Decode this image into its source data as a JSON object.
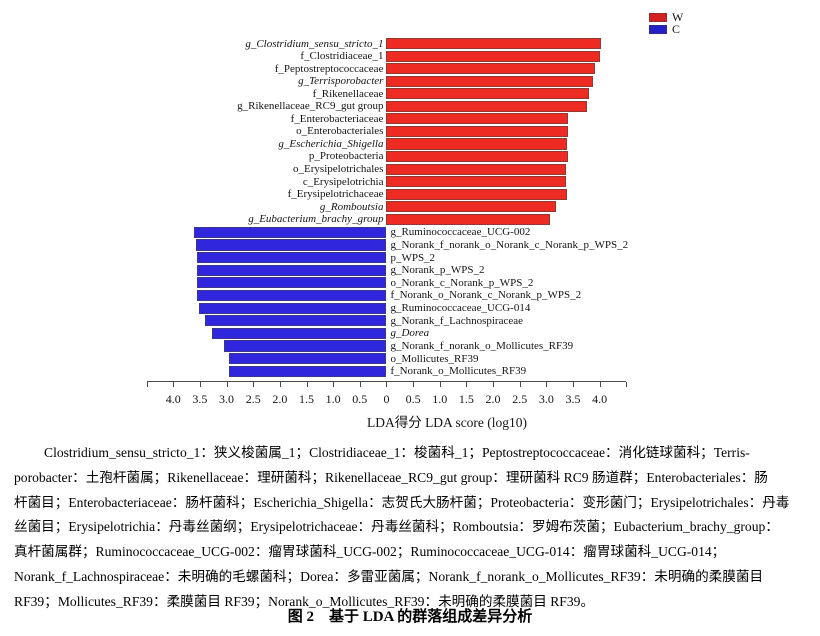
{
  "legend": {
    "items": [
      {
        "label": "W",
        "color": "#d32220"
      },
      {
        "label": "C",
        "color": "#2420c8"
      }
    ]
  },
  "chart_data": {
    "type": "bar",
    "orientation": "horizontal-diverging",
    "xlabel": "LDA得分  LDA score (log10)",
    "xlim": [
      -4.5,
      4.5
    ],
    "tick_step": 0.5,
    "ticks": [
      "4.0",
      "3.5",
      "3.0",
      "2.5",
      "2.0",
      "1.5",
      "1.0",
      "0.5",
      "0",
      "0.5",
      "1.0",
      "1.5",
      "2.0",
      "2.5",
      "3.0",
      "3.5",
      "4.0"
    ],
    "legend_position": "top-right",
    "grid": false,
    "series": [
      {
        "name": "W",
        "color": "#ee2b22",
        "side": "right",
        "items": [
          {
            "label": "g_Clostridium_sensu_stricto_1",
            "value": 4.02,
            "italic": true
          },
          {
            "label": "f_Clostridiaceae_1",
            "value": 4.0,
            "italic": false
          },
          {
            "label": "f_Peptostreptococcaceae",
            "value": 3.92,
            "italic": false
          },
          {
            "label": "g_Terrisporobacter",
            "value": 3.88,
            "italic": true
          },
          {
            "label": "f_Rikenellaceae",
            "value": 3.8,
            "italic": false
          },
          {
            "label": "g_Rikenellaceae_RC9_gut group",
            "value": 3.76,
            "italic": false
          },
          {
            "label": "f_Enterobacteriaceae",
            "value": 3.4,
            "italic": false
          },
          {
            "label": "o_Enterobacteriales",
            "value": 3.4,
            "italic": false
          },
          {
            "label": "g_Escherichia_Shigella",
            "value": 3.39,
            "italic": true
          },
          {
            "label": "p_Proteobacteria",
            "value": 3.4,
            "italic": false
          },
          {
            "label": "o_Erysipelotrichales",
            "value": 3.37,
            "italic": false
          },
          {
            "label": "c_Erysipelotrichia",
            "value": 3.37,
            "italic": false
          },
          {
            "label": "f_Erysipelotrichaceae",
            "value": 3.38,
            "italic": false
          },
          {
            "label": "g_Romboutsia",
            "value": 3.19,
            "italic": true
          },
          {
            "label": "g_Eubacterium_brachy_group",
            "value": 3.07,
            "italic": true
          }
        ]
      },
      {
        "name": "C",
        "color": "#3026de",
        "side": "left",
        "items": [
          {
            "label": "g_Ruminococcaceae_UCG-002",
            "value": 3.62,
            "italic": false
          },
          {
            "label": "g_Norank_f_norank_o_Norank_c_Norank_p_WPS_2",
            "value": 3.57,
            "italic": false
          },
          {
            "label": "p_WPS_2",
            "value": 3.56,
            "italic": false
          },
          {
            "label": "g_Norank_p_WPS_2",
            "value": 3.56,
            "italic": false
          },
          {
            "label": "o_Norank_c_Norank_p_WPS_2",
            "value": 3.56,
            "italic": false
          },
          {
            "label": "f_Norank_o_Norank_c_Norank_p_WPS_2",
            "value": 3.56,
            "italic": false
          },
          {
            "label": "g_Ruminococcaceae_UCG-014",
            "value": 3.52,
            "italic": false
          },
          {
            "label": "g_Norank_f_Lachnospiraceae",
            "value": 3.41,
            "italic": false
          },
          {
            "label": "g_Dorea",
            "value": 3.27,
            "italic": true
          },
          {
            "label": "g_Norank_f_norank_o_Mollicutes_RF39",
            "value": 3.04,
            "italic": false
          },
          {
            "label": "o_Mollicutes_RF39",
            "value": 2.96,
            "italic": false
          },
          {
            "label": "f_Norank_o_Mollicutes_RF39",
            "value": 2.95,
            "italic": false
          }
        ]
      }
    ]
  },
  "paragraph": {
    "lines": [
      "Clostridium_sensu_stricto_1：狭义梭菌属_1；Clostridiaceae_1：梭菌科_1；Peptostreptococcaceae：消化链球菌科；Terris-",
      "porobacter：土孢杆菌属；Rikenellaceae：理研菌科；Rikenellaceae_RC9_gut group：理研菌科 RC9 肠道群；Enterobacteriales：肠",
      "杆菌目；Enterobacteriaceae：肠杆菌科；Escherichia_Shigella：志贺氏大肠杆菌；Proteobacteria：变形菌门；Erysipelotrichales：丹毒",
      "丝菌目；Erysipelotrichia：丹毒丝菌纲；Erysipelotrichaceae：丹毒丝菌科；Romboutsia：罗姆布茨菌；Eubacterium_brachy_group：",
      "真杆菌属群；Ruminococcaceae_UCG-002：瘤胃球菌科_UCG-002；Ruminococcaceae_UCG-014：瘤胃球菌科_UCG-014；",
      "Norank_f_Lachnospiraceae：未明确的毛螺菌科；Dorea：多雷亚菌属；Norank_f_norank_o_Mollicutes_RF39：未明确的柔膜菌目",
      "RF39；Mollicutes_RF39：柔膜菌目 RF39；Norank_o_Mollicutes_RF39：未明确的柔膜菌目 RF39。"
    ]
  },
  "caption": "图 2　基于 LDA 的群落组成差异分析"
}
